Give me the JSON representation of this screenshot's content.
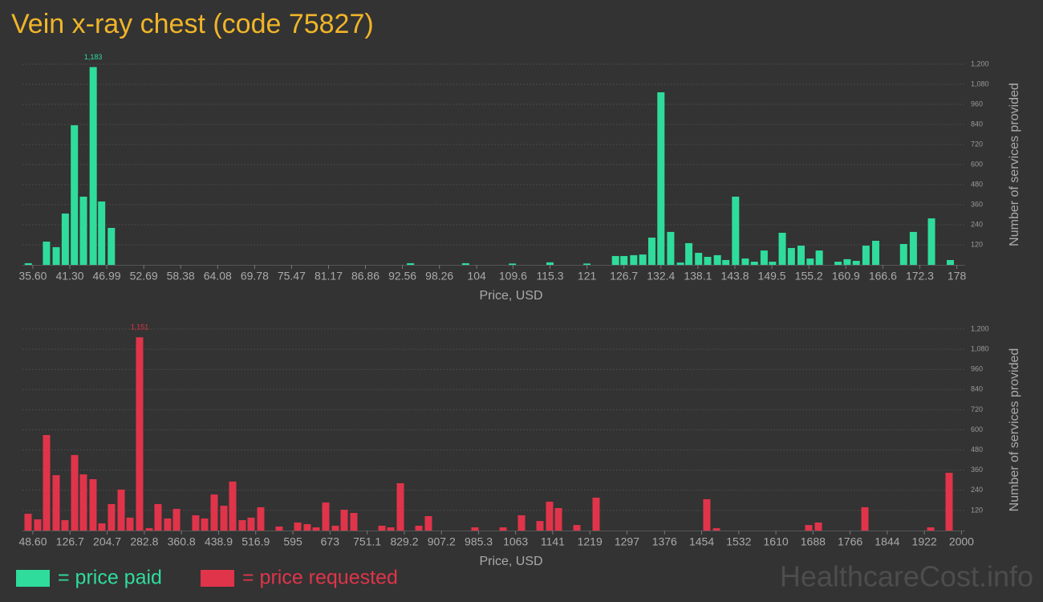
{
  "chart_data": [
    {
      "type": "bar",
      "title": "Vein x-ray chest (code 75827)",
      "xlabel": "Price, USD",
      "ylabel": "Number of services provided",
      "grid": true,
      "x": [
        34.9,
        37.7,
        39.2,
        40.6,
        42.0,
        43.4,
        44.9,
        46.2,
        47.7,
        93.8,
        102.3,
        109.5,
        115.3,
        121.0,
        125.4,
        126.7,
        128.2,
        129.6,
        131.0,
        132.4,
        133.9,
        135.4,
        136.7,
        138.2,
        139.6,
        141.1,
        142.4,
        143.9,
        145.4,
        146.8,
        148.3,
        149.6,
        151.1,
        152.5,
        154.0,
        155.4,
        156.8,
        159.7,
        161.1,
        162.5,
        164.0,
        165.5,
        169.8,
        171.3,
        174.1,
        177.0
      ],
      "series": [
        {
          "name": "= price paid",
          "color": "#2fdc9c",
          "values": [
            10,
            139,
            106,
            307,
            835,
            408,
            1183,
            379,
            221,
            10,
            10,
            8,
            15,
            8,
            53,
            53,
            58,
            62,
            163,
            1032,
            197,
            14,
            130,
            72,
            48,
            58,
            29,
            408,
            38,
            19,
            86,
            19,
            192,
            101,
            115,
            38,
            86,
            19,
            34,
            24,
            115,
            144,
            125,
            197,
            278,
            29
          ],
          "value_labels": [
            null,
            null,
            null,
            null,
            null,
            null,
            "1,183",
            null,
            null,
            null,
            null,
            null,
            null,
            null,
            null,
            null,
            null,
            null,
            null,
            null,
            null,
            null,
            null,
            null,
            null,
            null,
            null,
            null,
            null,
            null,
            null,
            null,
            null,
            null,
            null,
            null,
            null,
            null,
            null,
            null,
            null,
            null,
            null,
            null,
            null,
            null
          ]
        }
      ],
      "xlim": [
        34.0,
        178.3
      ],
      "xticks": [
        {
          "value": 35.6,
          "label": "35.60"
        },
        {
          "value": 41.3,
          "label": "41.30"
        },
        46.99,
        52.69,
        58.38,
        64.08,
        69.78,
        75.47,
        81.17,
        86.86,
        92.56,
        98.26,
        104,
        109.6,
        115.3,
        121,
        126.7,
        132.4,
        138.1,
        143.8,
        149.5,
        155.2,
        160.9,
        166.6,
        172.3,
        178
      ],
      "ylim": [
        0,
        1200
      ],
      "yticks": [
        120,
        240,
        360,
        480,
        600,
        720,
        840,
        960,
        {
          "value": 1080,
          "label": "1,080"
        },
        {
          "value": 1200,
          "label": "1,200"
        }
      ]
    },
    {
      "type": "bar",
      "xlabel": "Price, USD",
      "ylabel": "Number of services provided",
      "grid": true,
      "x": [
        38.5,
        58.7,
        77.3,
        97.5,
        116.0,
        136.3,
        154.8,
        175.0,
        193.6,
        213.8,
        234.1,
        252.6,
        272.8,
        293.1,
        311.6,
        331.8,
        350.4,
        390.8,
        409.4,
        429.6,
        449.9,
        468.4,
        488.6,
        507.2,
        527.4,
        566.2,
        605.0,
        625.2,
        643.8,
        664.0,
        684.2,
        702.8,
        723.0,
        782.0,
        800.6,
        820.8,
        859.6,
        879.8,
        977.6,
        1036.6,
        1075.4,
        1114.2,
        1134.4,
        1153.0,
        1191.7,
        1232.2,
        1464.8,
        1485.1,
        1678.9,
        1699.2,
        1797.0,
        1935.3,
        1974.0
      ],
      "series": [
        {
          "name": "= price requested",
          "color": "#e0344a",
          "values": [
            100,
            67,
            569,
            330,
            62,
            450,
            335,
            306,
            43,
            158,
            244,
            77,
            1151,
            14,
            158,
            72,
            129,
            91,
            72,
            215,
            148,
            292,
            62,
            77,
            139,
            24,
            48,
            38,
            19,
            167,
            29,
            124,
            105,
            29,
            19,
            282,
            29,
            86,
            19,
            19,
            91,
            57,
            172,
            134,
            33,
            196,
            187,
            14,
            33,
            48,
            139,
            19,
            344
          ],
          "value_labels": [
            null,
            null,
            null,
            null,
            null,
            null,
            null,
            null,
            null,
            null,
            null,
            null,
            "1,151",
            null,
            null,
            null,
            null,
            null,
            null,
            null,
            null,
            null,
            null,
            null,
            null,
            null,
            null,
            null,
            null,
            null,
            null,
            null,
            null,
            null,
            null,
            null,
            null,
            null,
            null,
            null,
            null,
            null,
            null,
            null,
            null,
            null,
            null,
            null,
            null,
            null,
            null,
            null,
            null
          ]
        }
      ],
      "xlim": [
        26.7,
        2002.7
      ],
      "xticks": [
        {
          "value": 48.6,
          "label": "48.60"
        },
        126.7,
        204.7,
        282.8,
        360.8,
        438.9,
        516.9,
        595,
        673,
        751.1,
        829.2,
        907.2,
        985.3,
        1063,
        1141,
        1219,
        1297,
        1376,
        1454,
        1532,
        1610,
        1688,
        1766,
        1844,
        1922,
        2000
      ],
      "ylim": [
        0,
        1200
      ],
      "yticks": [
        120,
        240,
        360,
        480,
        600,
        720,
        840,
        960,
        {
          "value": 1080,
          "label": "1,080"
        },
        {
          "value": 1200,
          "label": "1,200"
        }
      ]
    }
  ],
  "watermark": "HealthcareCost.info"
}
